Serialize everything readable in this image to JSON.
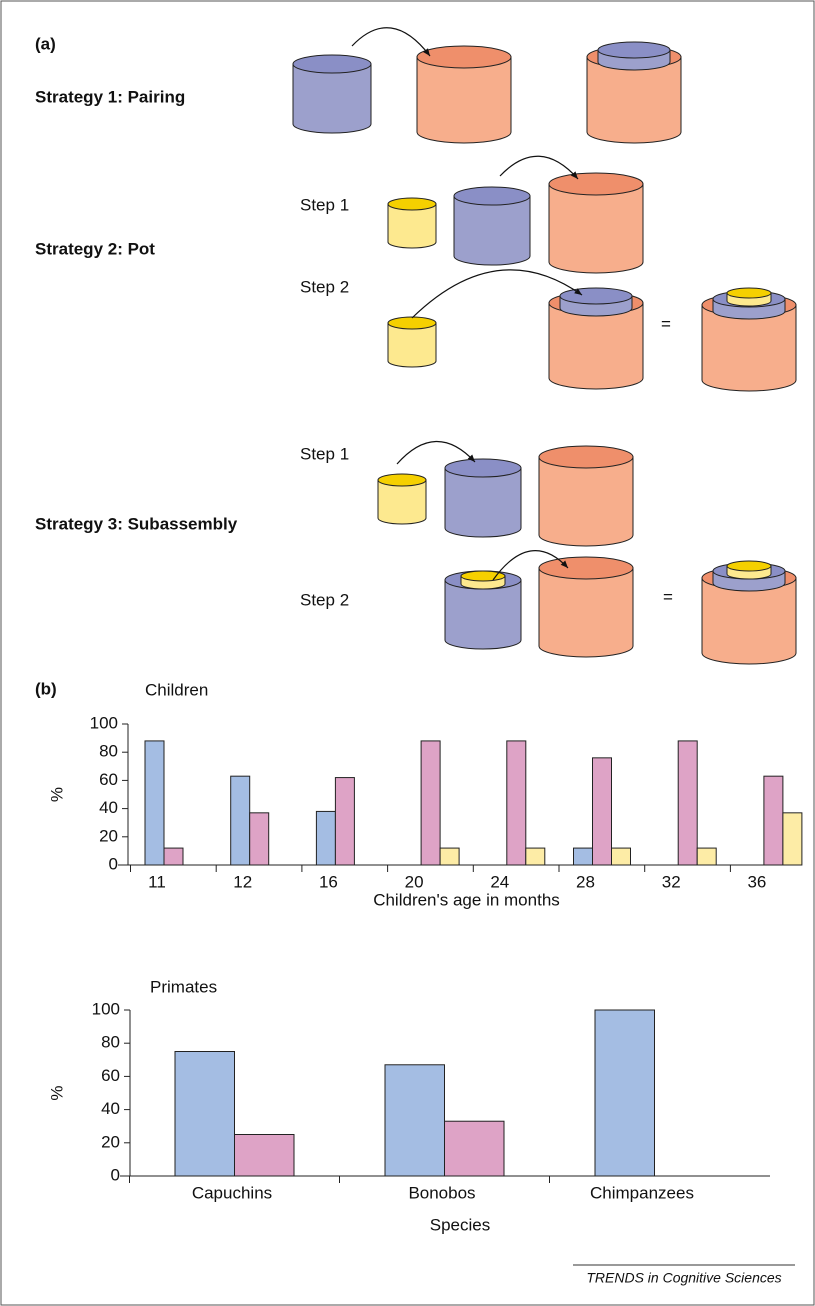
{
  "diagram": {
    "panel_a": "(a)",
    "strategies": [
      {
        "label": "Strategy 1: Pairing"
      },
      {
        "label": "Strategy 2: Pot",
        "steps": [
          "Step 1",
          "Step 2"
        ],
        "equals": "="
      },
      {
        "label": "Strategy 3: Subassembly",
        "steps": [
          "Step 1",
          "Step 2"
        ],
        "equals": "="
      }
    ],
    "panel_b": "(b)",
    "credit": "TRENDS in Cognitive Sciences"
  },
  "chart_data": [
    {
      "type": "bar",
      "title": "Children",
      "y_label": "%",
      "x_label": "Children's age in months",
      "categories": [
        "11",
        "12",
        "16",
        "20",
        "24",
        "28",
        "32",
        "36"
      ],
      "series": [
        {
          "color": "#a4bde3",
          "values": [
            88,
            63,
            38,
            0,
            0,
            12,
            0,
            0
          ]
        },
        {
          "color": "#dea3c6",
          "values": [
            12,
            37,
            62,
            88,
            88,
            76,
            88,
            63
          ]
        },
        {
          "color": "#fdeca6",
          "values": [
            0,
            0,
            0,
            12,
            12,
            12,
            12,
            37
          ]
        }
      ],
      "ylim": [
        0,
        100
      ],
      "yticks": [
        0,
        20,
        40,
        60,
        80,
        100
      ],
      "grid": false
    },
    {
      "type": "bar",
      "title": "Primates",
      "y_label": "%",
      "x_label": "Species",
      "categories": [
        "Capuchins",
        "Bonobos",
        "Chimpanzees"
      ],
      "series": [
        {
          "color": "#a4bde3",
          "values": [
            75,
            67,
            100
          ]
        },
        {
          "color": "#dea3c6",
          "values": [
            25,
            33,
            0
          ]
        }
      ],
      "ylim": [
        0,
        100
      ],
      "yticks": [
        0,
        20,
        40,
        60,
        80,
        100
      ],
      "grid": false
    }
  ]
}
